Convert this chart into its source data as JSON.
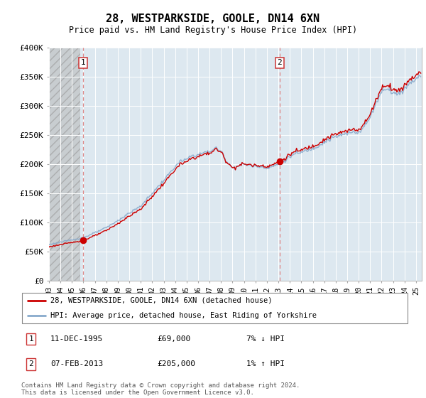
{
  "title": "28, WESTPARKSIDE, GOOLE, DN14 6XN",
  "subtitle": "Price paid vs. HM Land Registry's House Price Index (HPI)",
  "ylim": [
    0,
    400000
  ],
  "yticks": [
    0,
    50000,
    100000,
    150000,
    200000,
    250000,
    300000,
    350000,
    400000
  ],
  "ytick_labels": [
    "£0",
    "£50K",
    "£100K",
    "£150K",
    "£200K",
    "£250K",
    "£300K",
    "£350K",
    "£400K"
  ],
  "xlim_start": 1993.0,
  "xlim_end": 2025.5,
  "hatch_end": 1995.75,
  "marker1_x": 1995.95,
  "marker1_y": 69000,
  "marker2_x": 2013.1,
  "marker2_y": 205000,
  "sale1_date": "11-DEC-1995",
  "sale1_price": "£69,000",
  "sale1_hpi": "7% ↓ HPI",
  "sale2_date": "07-FEB-2013",
  "sale2_price": "£205,000",
  "sale2_hpi": "1% ↑ HPI",
  "red_line_color": "#cc0000",
  "blue_line_color": "#88aacc",
  "bg_color": "#dde8f0",
  "vline_color": "#dd8888",
  "legend_line1": "28, WESTPARKSIDE, GOOLE, DN14 6XN (detached house)",
  "legend_line2": "HPI: Average price, detached house, East Riding of Yorkshire",
  "footer": "Contains HM Land Registry data © Crown copyright and database right 2024.\nThis data is licensed under the Open Government Licence v3.0."
}
